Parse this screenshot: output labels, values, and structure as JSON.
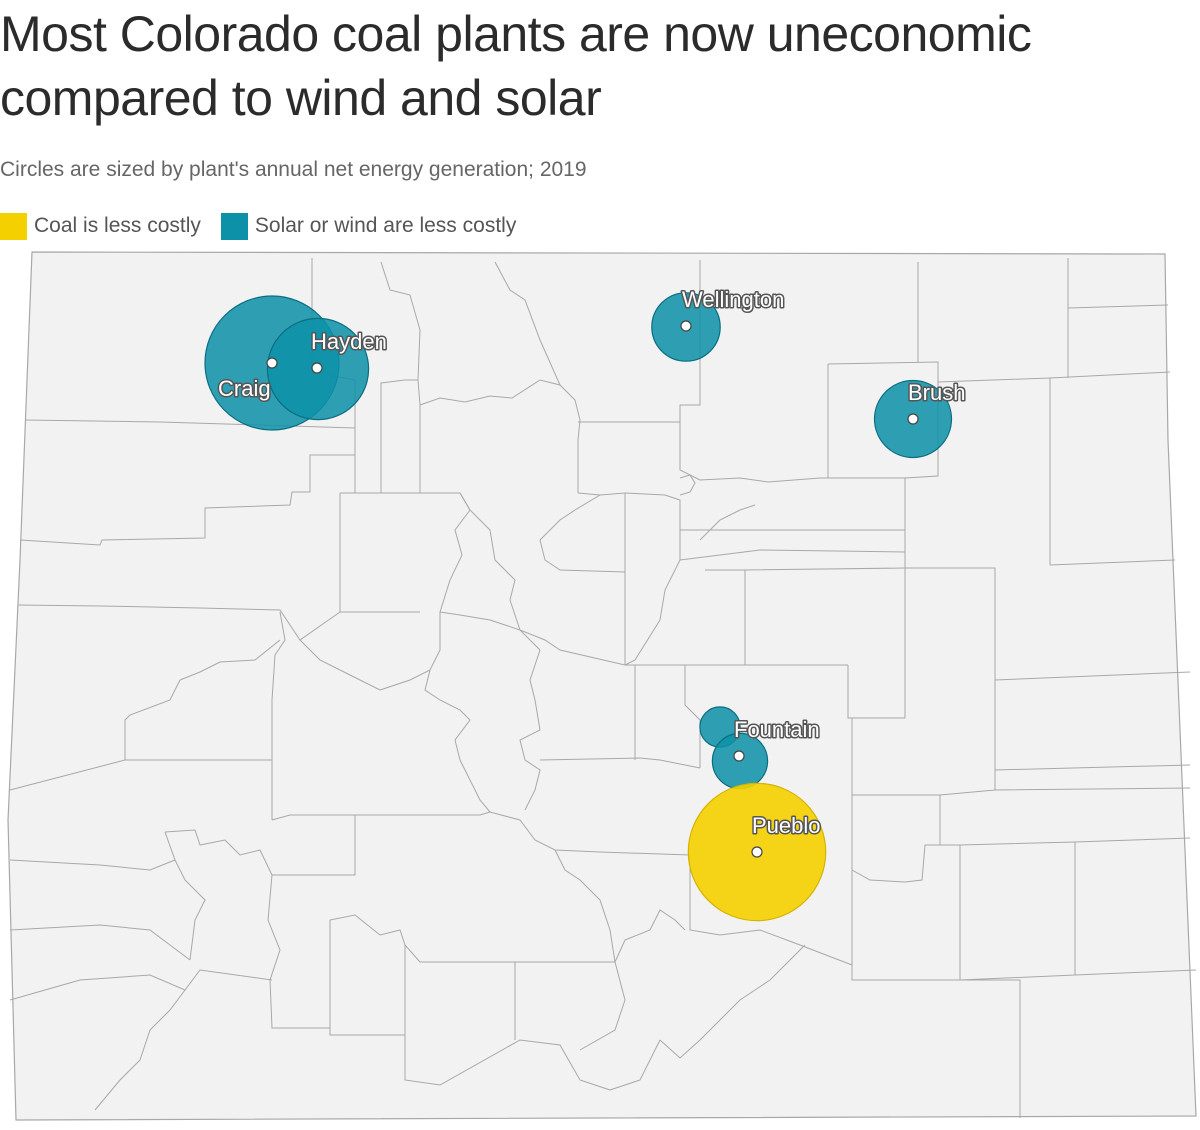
{
  "title": "Most Colorado coal plants are now uneconomic compared to wind and solar",
  "subtitle": "Circles are sized by plant's annual net energy generation; 2019",
  "legend": {
    "coal": {
      "label": "Coal is less costly",
      "color": "#f5d000"
    },
    "renewable": {
      "label": "Solar or wind are less costly",
      "color": "#0c91a8"
    }
  },
  "colors": {
    "map_fill": "#f2f2f2",
    "map_stroke": "#a8a8a8",
    "dot": "#ffffff"
  },
  "plants": [
    {
      "id": "craig",
      "name": "Craig",
      "category": "renewable",
      "relative_size": 1.0
    },
    {
      "id": "hayden",
      "name": "Hayden",
      "category": "renewable",
      "relative_size": 0.57
    },
    {
      "id": "wellington",
      "name": "Wellington",
      "category": "renewable",
      "relative_size": 0.26
    },
    {
      "id": "brush",
      "name": "Brush",
      "category": "renewable",
      "relative_size": 0.33
    },
    {
      "id": "fountain-north",
      "name": "",
      "category": "renewable",
      "relative_size": 0.09
    },
    {
      "id": "fountain",
      "name": "Fountain",
      "category": "renewable",
      "relative_size": 0.17
    },
    {
      "id": "pueblo",
      "name": "Pueblo",
      "category": "coal",
      "relative_size": 1.05
    }
  ]
}
